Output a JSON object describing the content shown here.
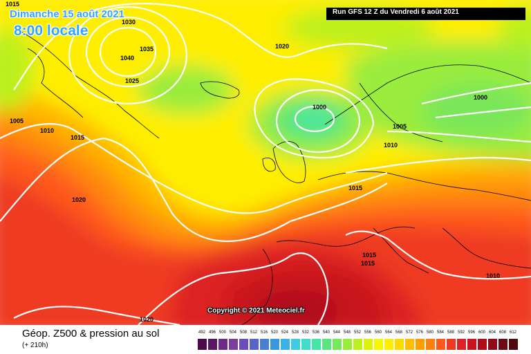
{
  "header": {
    "date": "Dimanche 15 août 2021",
    "time": "8:00 locale",
    "run": "Run GFS 12 Z du Vendredi 6 août 2021"
  },
  "copyright": "Copyright © 2021 Meteociel.fr",
  "footer": {
    "product_title": "Géop. Z500 & pression au sol",
    "forecast_hour": "(+ 210h)"
  },
  "isobar_labels": [
    "1015",
    "1030",
    "1035",
    "1040",
    "1025",
    "1020",
    "1000",
    "1005",
    "1010",
    "1015",
    "1020",
    "1015",
    "1015",
    "1000",
    "1005",
    "1010",
    "1010",
    "1020"
  ],
  "legend": {
    "labels": [
      "492",
      "496",
      "500",
      "504",
      "508",
      "512",
      "516",
      "520",
      "524",
      "528",
      "532",
      "536",
      "540",
      "544",
      "548",
      "552",
      "556",
      "560",
      "564",
      "568",
      "572",
      "576",
      "580",
      "584",
      "588",
      "592",
      "596",
      "600",
      "604",
      "608",
      "612"
    ],
    "colors": [
      "#4b0a4b",
      "#5a1664",
      "#6e2a86",
      "#7d3ca0",
      "#6c4cb8",
      "#5a64c8",
      "#4a7ed2",
      "#3a98dc",
      "#3ab2e6",
      "#3ccce6",
      "#40ddc8",
      "#44e6a8",
      "#5ae67e",
      "#7ae65a",
      "#9aec3c",
      "#bcf01e",
      "#dcf40a",
      "#f4f800",
      "#ffee00",
      "#ffd800",
      "#ffbc00",
      "#ff9e00",
      "#ff7e10",
      "#ff5a1e",
      "#ee3a24",
      "#dc2224",
      "#c8121c",
      "#b00c1a",
      "#8c0a1a",
      "#6c0a14",
      "#4e0a0e"
    ]
  }
}
